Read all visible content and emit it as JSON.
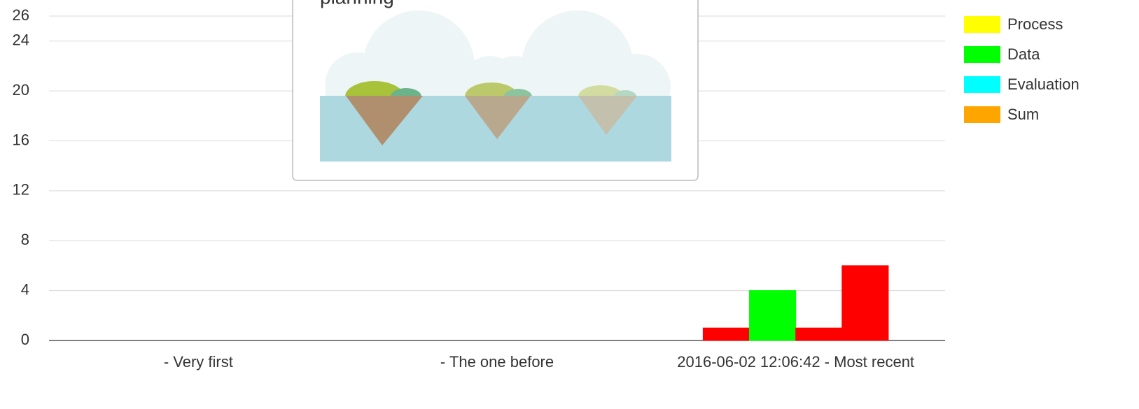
{
  "chart_data": {
    "type": "bar",
    "categories": [
      "- Very first",
      "- The one before",
      "2016-06-02 12:06:42 - Most recent"
    ],
    "series": [
      {
        "name": "Process",
        "color": "#ffff00",
        "bar_color": "#ff0000",
        "values": [
          0,
          0,
          1
        ]
      },
      {
        "name": "Data",
        "color": "#00ff00",
        "bar_color": "#00ff00",
        "values": [
          0,
          0,
          4
        ]
      },
      {
        "name": "Evaluation",
        "color": "#00ffff",
        "bar_color": "#ff0000",
        "values": [
          0,
          0,
          1
        ]
      },
      {
        "name": "Sum",
        "color": "#ffa500",
        "bar_color": "#ff0000",
        "values": [
          0,
          0,
          6
        ]
      }
    ],
    "ylim": [
      0,
      26
    ],
    "yticks": [
      0,
      4,
      8,
      12,
      16,
      20,
      24,
      26
    ],
    "grid": true,
    "legend": "right"
  },
  "popup": {
    "text": "planning"
  }
}
